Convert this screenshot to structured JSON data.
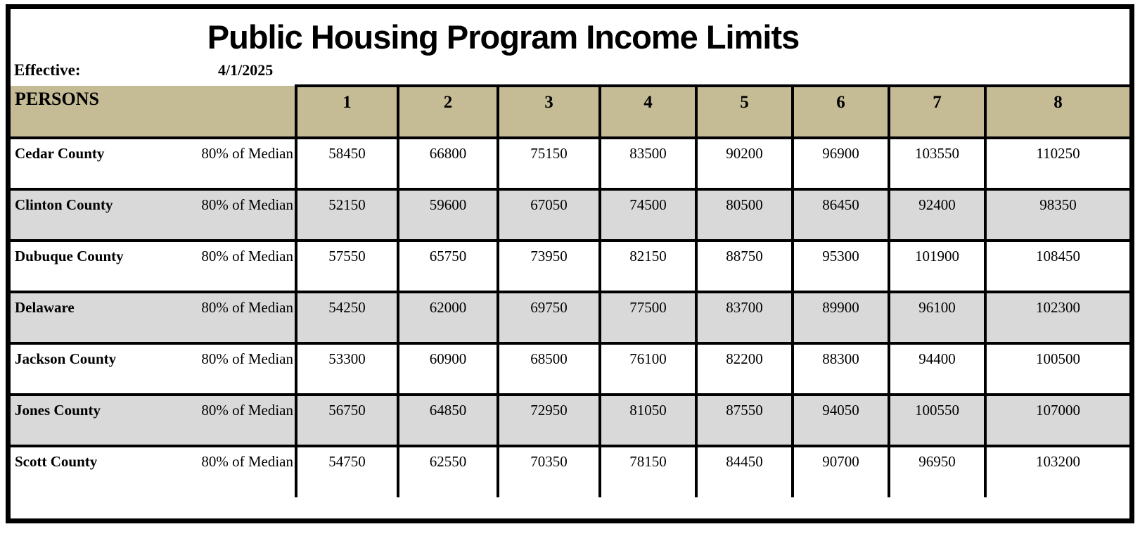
{
  "title": "Public Housing Program Income Limits",
  "effective": {
    "label": "Effective:",
    "date": "4/1/2025"
  },
  "table": {
    "persons_label": "PERSONS",
    "person_columns": [
      "1",
      "2",
      "3",
      "4",
      "5",
      "6",
      "7",
      "8"
    ],
    "rows": [
      {
        "county": "Cedar County",
        "label": "80% of Median",
        "values": [
          58450,
          66800,
          75150,
          83500,
          90200,
          96900,
          103550,
          110250
        ]
      },
      {
        "county": "Clinton County",
        "label": "80% of Median",
        "values": [
          52150,
          59600,
          67050,
          74500,
          80500,
          86450,
          92400,
          98350
        ]
      },
      {
        "county": "Dubuque County",
        "label": "80% of Median",
        "values": [
          57550,
          65750,
          73950,
          82150,
          88750,
          95300,
          101900,
          108450
        ]
      },
      {
        "county": "Delaware",
        "label": "80% of Median",
        "values": [
          54250,
          62000,
          69750,
          77500,
          83700,
          89900,
          96100,
          102300
        ]
      },
      {
        "county": "Jackson County",
        "label": "80% of Median",
        "values": [
          53300,
          60900,
          68500,
          76100,
          82200,
          88300,
          94400,
          100500
        ]
      },
      {
        "county": "Jones County",
        "label": "80% of Median",
        "values": [
          56750,
          64850,
          72950,
          81050,
          87550,
          94050,
          100550,
          107000
        ]
      },
      {
        "county": "Scott County",
        "label": "80% of Median",
        "values": [
          54750,
          62550,
          70350,
          78150,
          84450,
          90700,
          96950,
          103200
        ]
      }
    ]
  },
  "colors": {
    "header_bg": "#C5BB95",
    "alt_row_bg": "#D9D9D9",
    "border": "#000000"
  }
}
